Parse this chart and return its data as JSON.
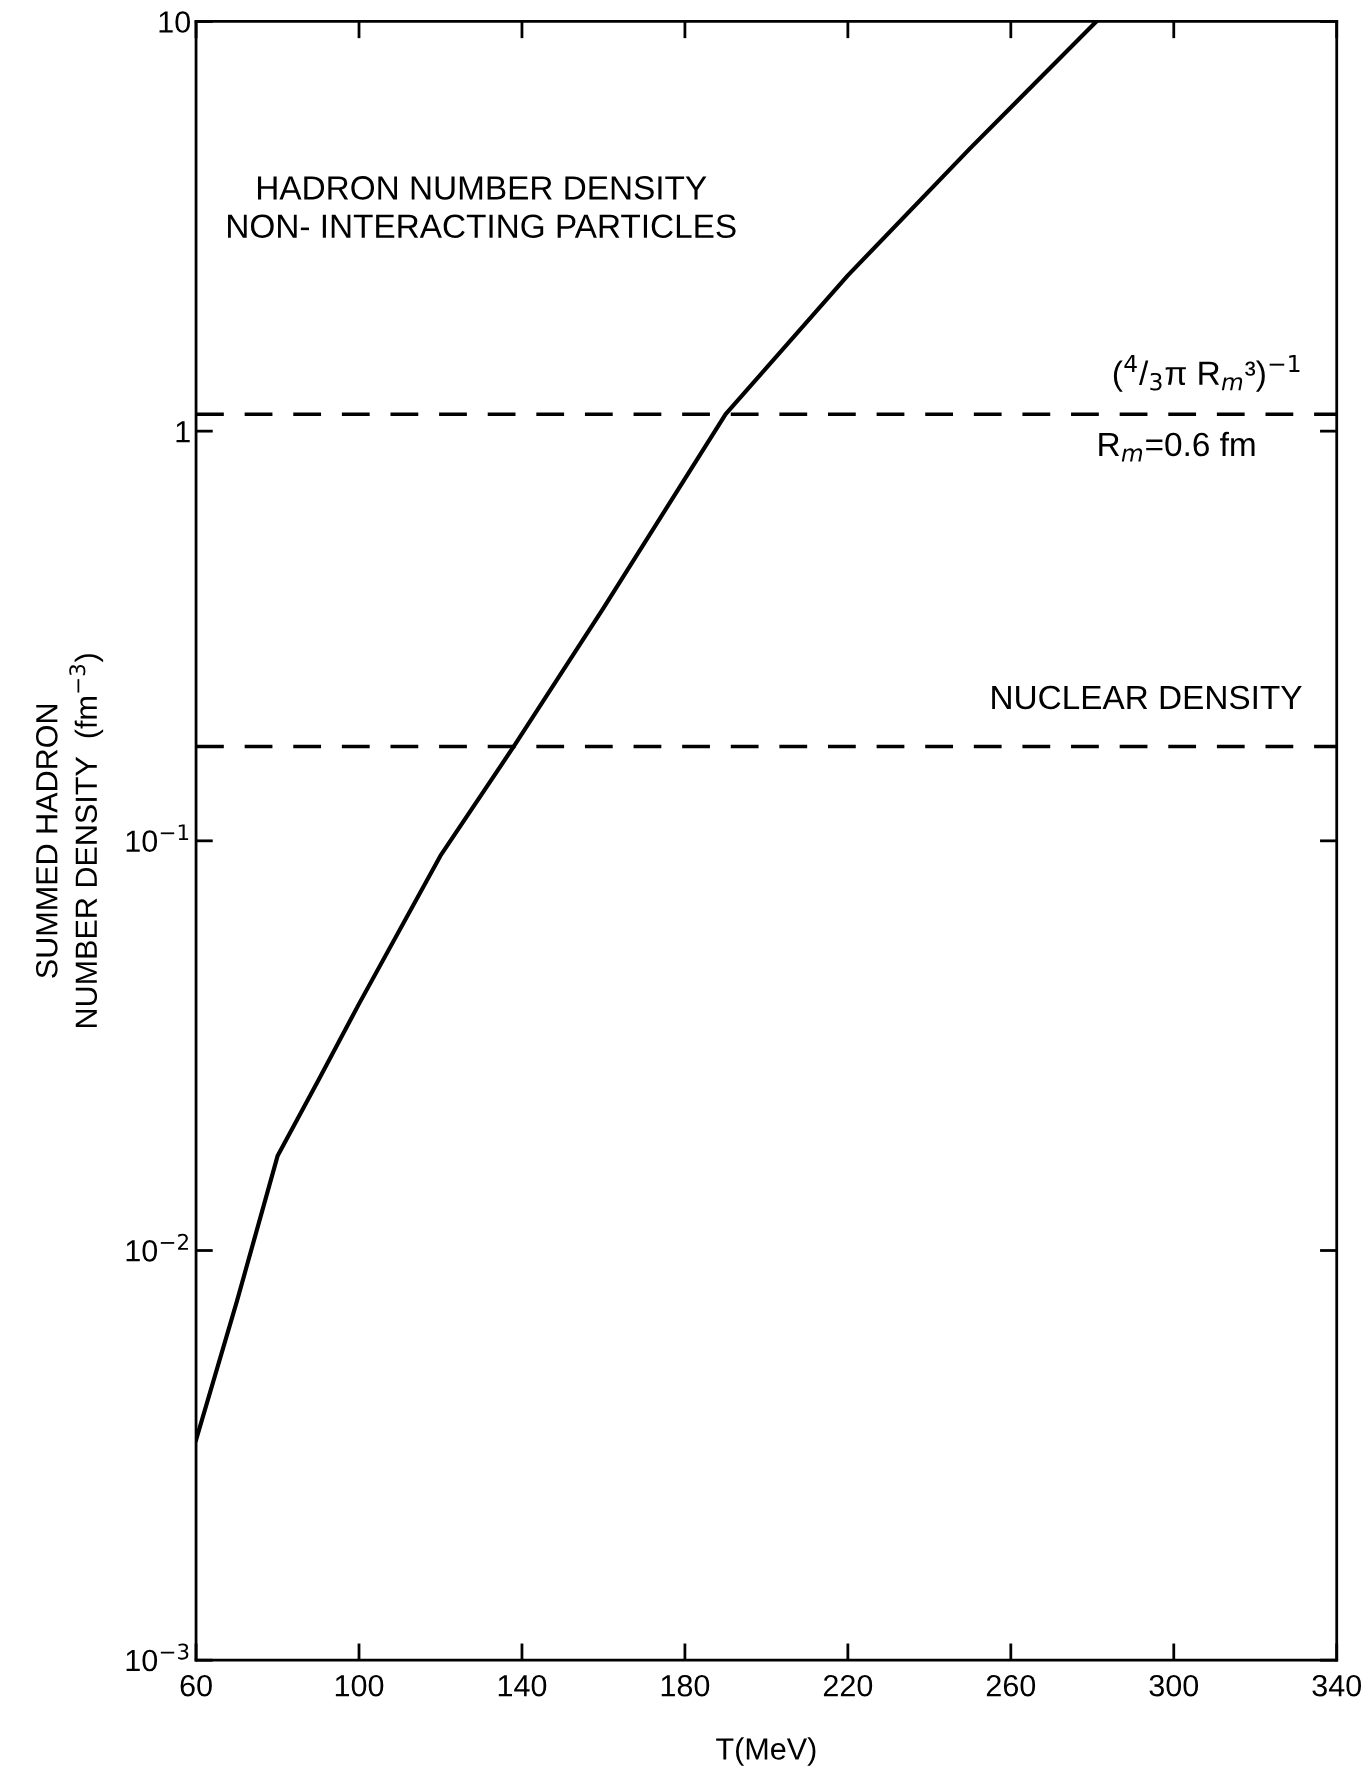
{
  "chart_data": {
    "type": "line",
    "xlabel": "T(MeV)",
    "ylabel": "SUMMED HADRON\nNUMBER DENSITY  (fm$^{−3}$)",
    "x": [
      60,
      70,
      80,
      90,
      100,
      120,
      138,
      160,
      190,
      220,
      250,
      281
    ],
    "series": [
      {
        "color": "#000000",
        "values": [
          0.00345,
          0.0075,
          0.017,
          0.026,
          0.04,
          0.092,
          0.17,
          0.37,
          1.1,
          2.4,
          4.9,
          10
        ]
      }
    ],
    "log": "y",
    "xlim": [
      60,
      340
    ],
    "ylim": [
      0.001,
      10
    ],
    "xticks": [
      60,
      100,
      140,
      180,
      220,
      260,
      300,
      340
    ],
    "yticks": [
      {
        "value": 0.001,
        "label": "10$^{−3}$"
      },
      {
        "value": 0.01,
        "label": "10$^{−2}$"
      },
      {
        "value": 0.1,
        "label": "10$^{−1}$"
      },
      1,
      10
    ],
    "grid": false,
    "legend": false,
    "marker": "none",
    "line_style": "solid",
    "ref_lines": [
      {
        "axis": "y",
        "value": 1.1,
        "label": "($^{4}$/$_{3}$π R$_{m}$³)$^{−1}$",
        "color": "#000000",
        "line_style": "dashed"
      },
      {
        "axis": "y",
        "value": 0.17,
        "label": "NUCLEAR DENSITY",
        "color": "#000000",
        "line_style": "dashed"
      }
    ],
    "annotations": [
      "HADRON NUMBER DENSITY\nNON- INTERACTING PARTICLES",
      "R$_{m}$=0.6 fm"
    ]
  }
}
